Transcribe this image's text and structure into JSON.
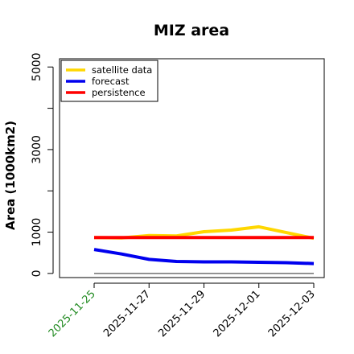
{
  "chart_data": {
    "type": "line",
    "title": "MIZ area",
    "xlabel": "",
    "ylabel": "Area (1000km2)",
    "x": [
      "2025-11-25",
      "2025-11-26",
      "2025-11-27",
      "2025-11-28",
      "2025-11-29",
      "2025-11-30",
      "2025-12-01",
      "2025-12-02",
      "2025-12-03"
    ],
    "x_ticks": [
      "2025-11-25",
      "2025-11-27",
      "2025-11-29",
      "2025-12-01",
      "2025-12-03"
    ],
    "x_tick_colors": [
      "#228b22",
      "#000000",
      "#000000",
      "#000000",
      "#000000"
    ],
    "y_ticks": [
      0,
      1000,
      3000,
      5000
    ],
    "ylim": [
      -100,
      5200
    ],
    "reference_line": {
      "value": 0,
      "color": "#555555"
    },
    "series": [
      {
        "name": "satellite data",
        "color": "#ffd700",
        "values": [
          870,
          860,
          920,
          910,
          1010,
          1050,
          1130,
          990,
          850
        ]
      },
      {
        "name": "forecast",
        "color": "#0000ee",
        "values": [
          580,
          470,
          340,
          290,
          280,
          280,
          270,
          260,
          240
        ]
      },
      {
        "name": "persistence",
        "color": "#ff0000",
        "values": [
          870,
          870,
          870,
          870,
          870,
          870,
          870,
          870,
          870
        ]
      }
    ],
    "legend": "top-left",
    "grid": false
  }
}
